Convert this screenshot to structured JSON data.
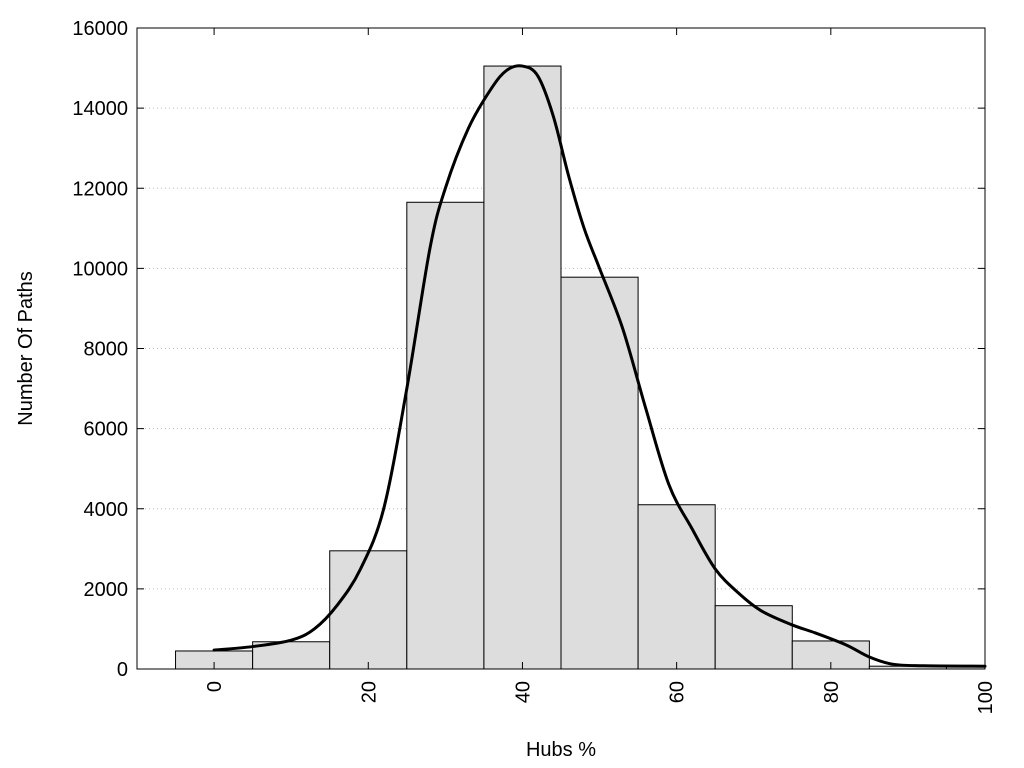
{
  "chart_data": {
    "type": "bar",
    "xlabel": "Hubs %",
    "ylabel": "Number Of Paths",
    "xlim": [
      -10,
      100
    ],
    "ylim": [
      0,
      16000
    ],
    "bin_width": 10,
    "x_ticks": [
      0,
      20,
      40,
      60,
      80,
      100
    ],
    "y_ticks": [
      0,
      2000,
      4000,
      6000,
      8000,
      10000,
      12000,
      14000,
      16000
    ],
    "grid": true,
    "bars": [
      {
        "x": 0,
        "value": 450
      },
      {
        "x": 10,
        "value": 680
      },
      {
        "x": 20,
        "value": 2950
      },
      {
        "x": 30,
        "value": 11650
      },
      {
        "x": 40,
        "value": 15050
      },
      {
        "x": 50,
        "value": 9780
      },
      {
        "x": 60,
        "value": 4100
      },
      {
        "x": 70,
        "value": 1580
      },
      {
        "x": 80,
        "value": 700
      },
      {
        "x": 90,
        "value": 70
      },
      {
        "x": 100,
        "value": 70
      }
    ],
    "density_curve": [
      [
        0,
        470
      ],
      [
        5,
        560
      ],
      [
        10,
        720
      ],
      [
        13,
        1000
      ],
      [
        16,
        1600
      ],
      [
        19,
        2500
      ],
      [
        22,
        4000
      ],
      [
        25,
        7000
      ],
      [
        28,
        10500
      ],
      [
        30,
        12000
      ],
      [
        33,
        13500
      ],
      [
        36,
        14500
      ],
      [
        38,
        14950
      ],
      [
        40,
        15050
      ],
      [
        42,
        14800
      ],
      [
        44,
        13800
      ],
      [
        46,
        12300
      ],
      [
        48,
        11000
      ],
      [
        50,
        10000
      ],
      [
        53,
        8500
      ],
      [
        56,
        6500
      ],
      [
        59,
        4600
      ],
      [
        62,
        3500
      ],
      [
        65,
        2500
      ],
      [
        68,
        1900
      ],
      [
        71,
        1450
      ],
      [
        75,
        1100
      ],
      [
        78,
        900
      ],
      [
        82,
        600
      ],
      [
        85,
        300
      ],
      [
        88,
        120
      ],
      [
        92,
        80
      ],
      [
        100,
        70
      ]
    ],
    "colors": {
      "bar_fill": "#dddddd",
      "bar_stroke": "#000000",
      "curve": "#000000",
      "grid": "#bbbbbb"
    }
  }
}
